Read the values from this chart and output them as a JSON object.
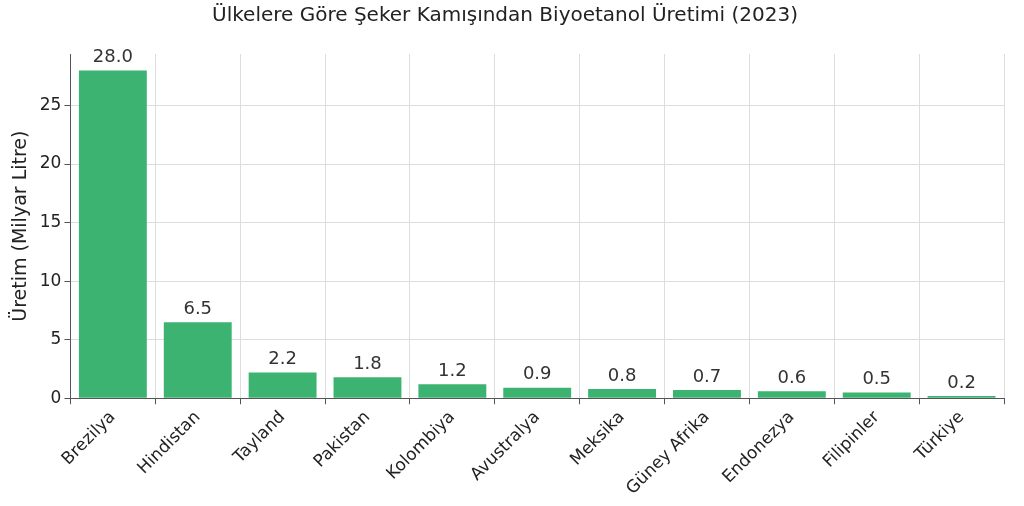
{
  "chart_data": {
    "type": "bar",
    "title": "Ülkelere Göre Şeker Kamışından Biyoetanol Üretimi (2023)",
    "ylabel": "Üretim (Milyar Litre)",
    "categories": [
      "Brezilya",
      "Hindistan",
      "Tayland",
      "Pakistan",
      "Kolombiya",
      "Avustralya",
      "Meksika",
      "Güney Afrika",
      "Endonezya",
      "Filipinler",
      "Türkiye"
    ],
    "values": [
      28.0,
      6.5,
      2.2,
      1.8,
      1.2,
      0.9,
      0.8,
      0.7,
      0.6,
      0.5,
      0.2
    ],
    "value_labels": [
      "28.0",
      "6.5",
      "2.2",
      "1.8",
      "1.2",
      "0.9",
      "0.8",
      "0.7",
      "0.6",
      "0.5",
      "0.2"
    ],
    "color": "#3cb371",
    "ylim": [
      0,
      29.4
    ],
    "yticks": [
      0,
      5,
      10,
      15,
      20,
      25
    ],
    "grid": true
  }
}
